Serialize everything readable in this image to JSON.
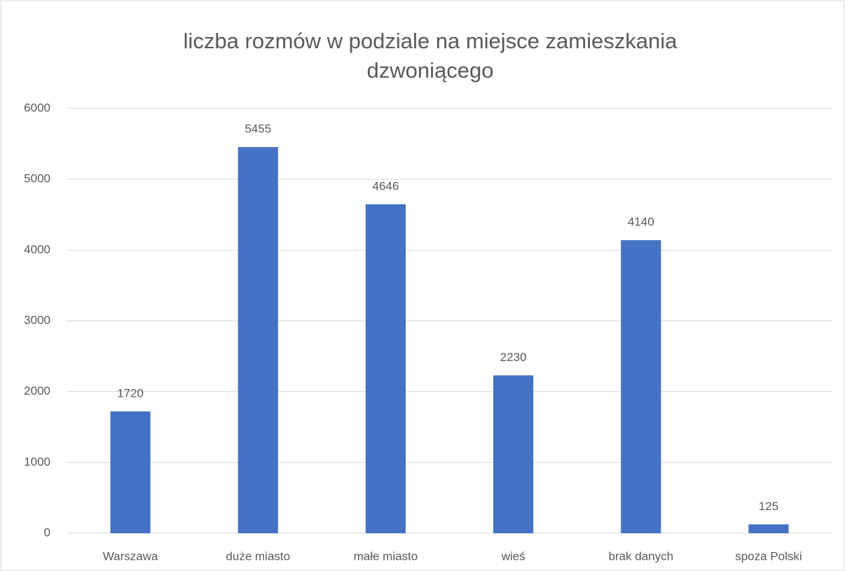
{
  "chart_data": {
    "type": "bar",
    "title": "liczba rozmów w podziale na miejsce zamieszkania dzwoniącego",
    "categories": [
      "Warszawa",
      "duże miasto",
      "małe miasto",
      "wieś",
      "brak danych",
      "spoza Polski"
    ],
    "values": [
      1720,
      5455,
      4646,
      2230,
      4140,
      125
    ],
    "color": "#4472c4",
    "ylim": [
      0,
      6000
    ],
    "yticks": [
      0,
      1000,
      2000,
      3000,
      4000,
      5000,
      6000
    ],
    "grid": true
  }
}
